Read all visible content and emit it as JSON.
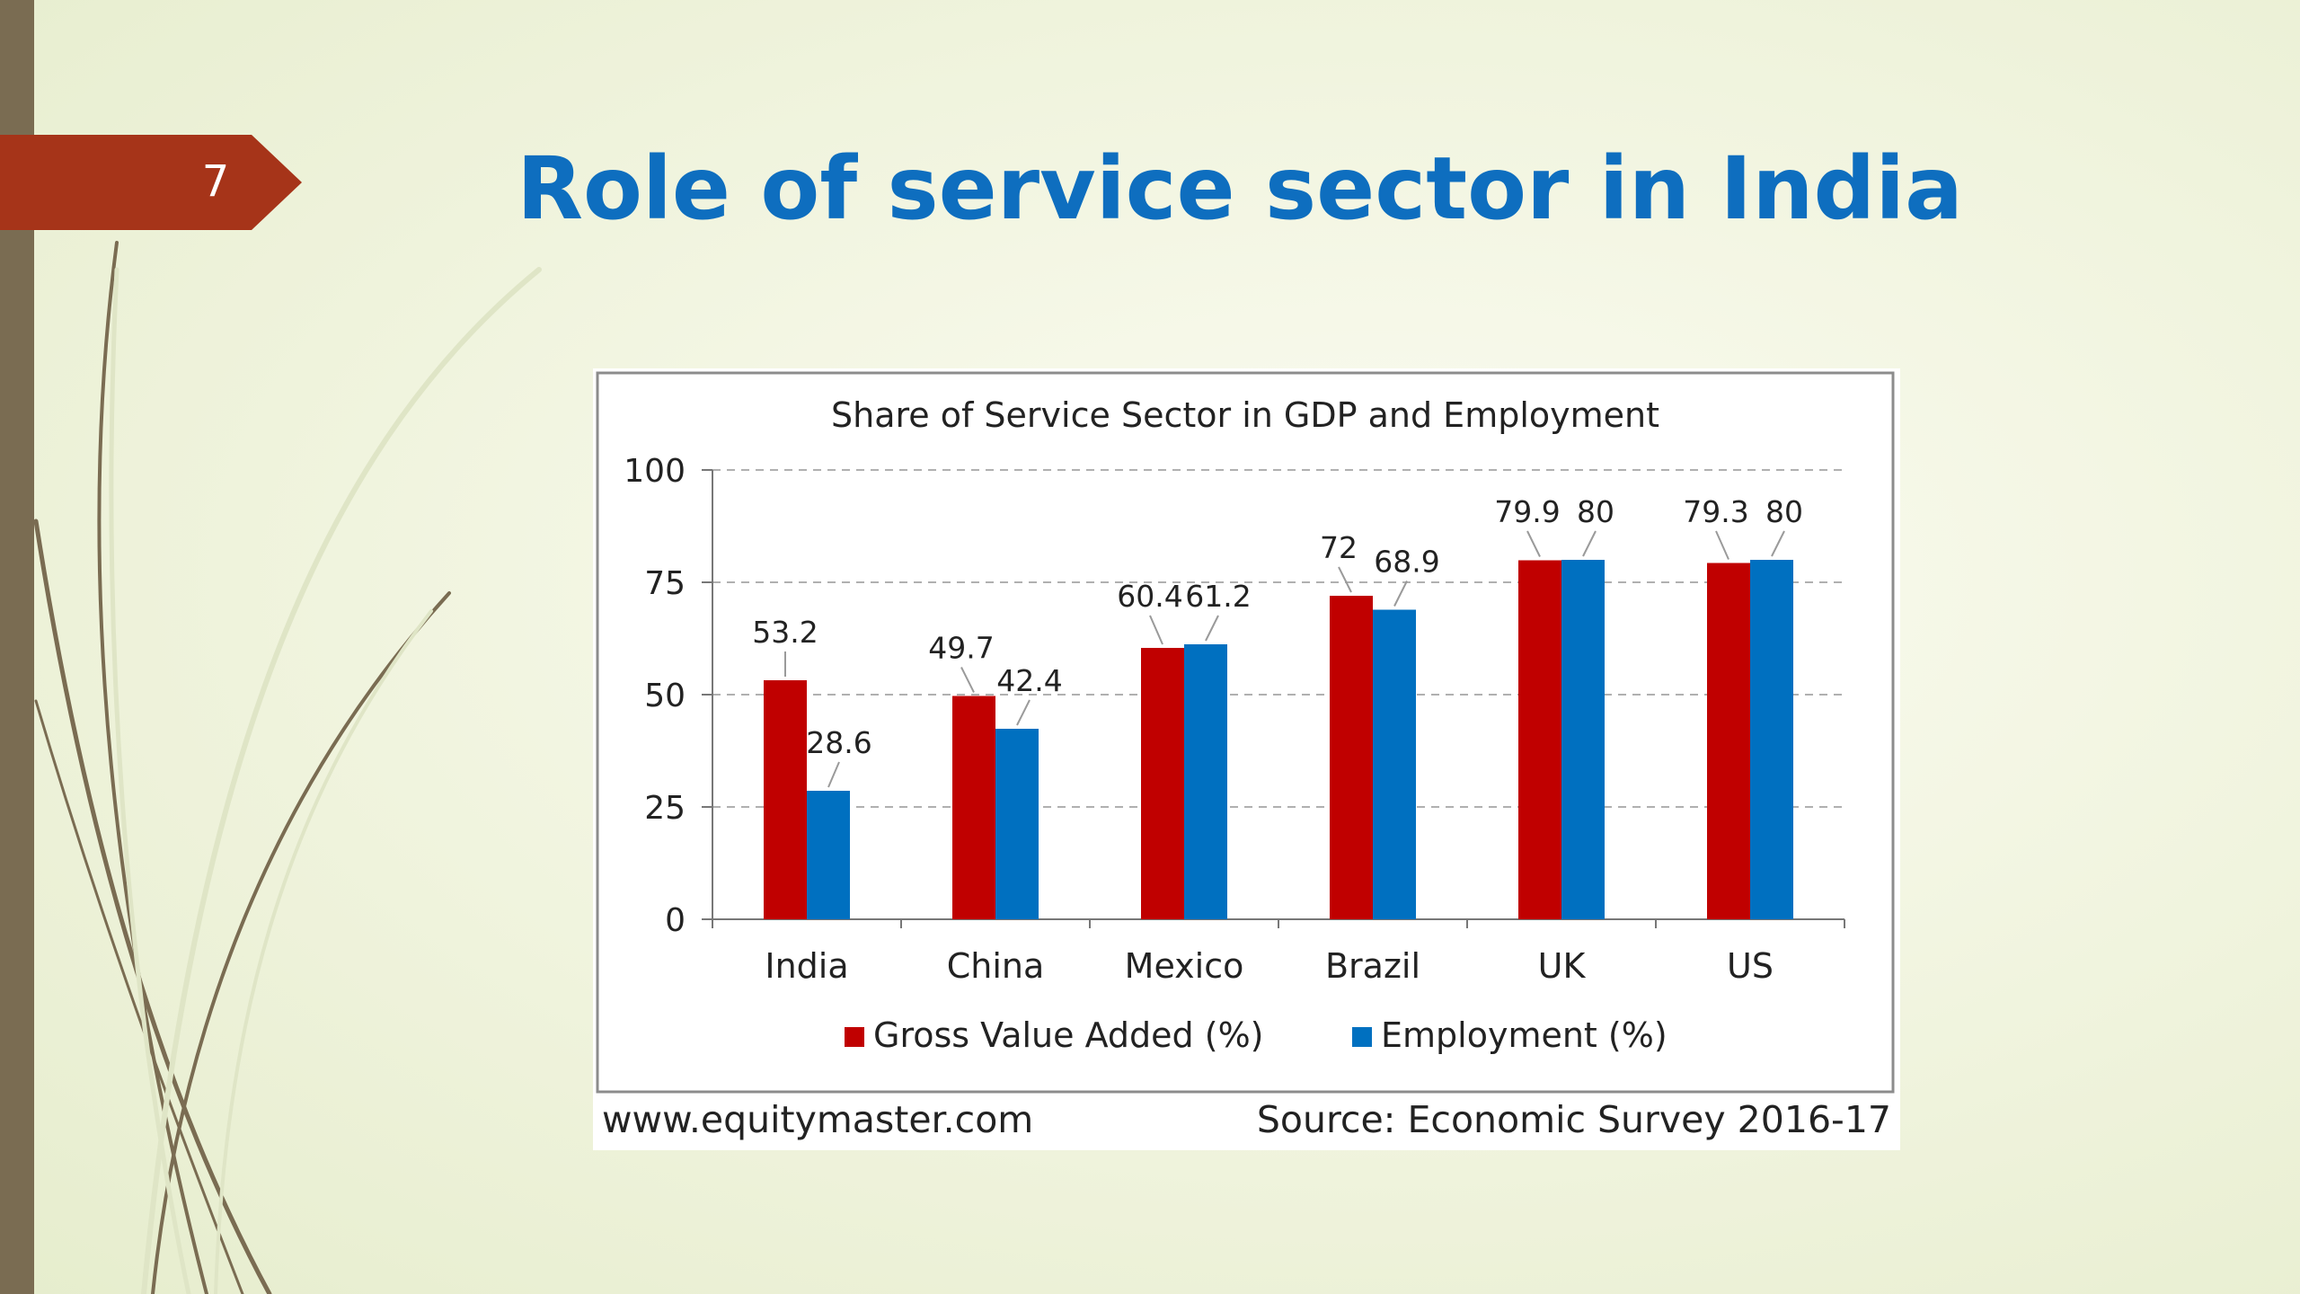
{
  "slide": {
    "number": "7",
    "title": "Role of service sector in India",
    "colors": {
      "title": "#0e6ebf",
      "tab": "#a63419",
      "sidebar": "#7a6c52"
    }
  },
  "footer": {
    "website": "www.equitymaster.com",
    "source": "Source: Economic Survey 2016-17"
  },
  "chart_data": {
    "type": "bar",
    "title": "Share of Service Sector in GDP and Employment",
    "xlabel": "",
    "ylabel": "",
    "categories": [
      "India",
      "China",
      "Mexico",
      "Brazil",
      "UK",
      "US"
    ],
    "series": [
      {
        "name": "Gross Value Added (%)",
        "color": "#c00000",
        "values": [
          53.2,
          49.7,
          60.4,
          72,
          79.9,
          79.3
        ],
        "labels": [
          "53.2",
          "49.7",
          "60.4",
          "72",
          "79.9",
          "79.3"
        ]
      },
      {
        "name": "Employment (%)",
        "color": "#0070c0",
        "values": [
          28.6,
          42.4,
          61.2,
          68.9,
          80,
          80
        ],
        "labels": [
          "28.6",
          "42.4",
          "61.2",
          "68.9",
          "80",
          "80"
        ]
      }
    ],
    "ylim": [
      0,
      100
    ],
    "yticks": [
      0,
      25,
      50,
      75,
      100
    ],
    "grid": true,
    "legend": "bottom"
  }
}
